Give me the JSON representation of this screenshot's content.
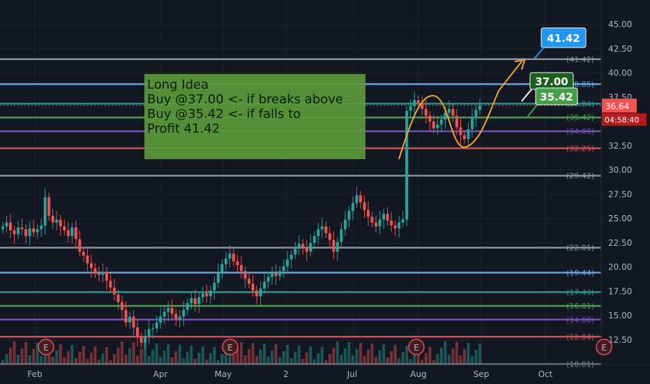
{
  "chart_data": {
    "type": "candlestick",
    "price_axis": {
      "ticks": [
        "45.00",
        "42.50",
        "40.00",
        "37.50",
        "35.00",
        "32.50",
        "30.00",
        "27.50",
        "25.00",
        "22.50",
        "20.00",
        "17.50",
        "15.00",
        "12.50"
      ],
      "ylim": [
        10.0,
        46.5
      ]
    },
    "time_axis": {
      "ticks": [
        "Feb",
        "Apr",
        "May",
        "2",
        "Jul",
        "Aug",
        "Sep",
        "Oct"
      ]
    },
    "current_price": {
      "value": "36.64",
      "countdown": "04:58:40",
      "price": 36.64
    },
    "horizontal_levels": [
      {
        "label": "(41.42)",
        "price": 41.42,
        "color": "#9aa0a6"
      },
      {
        "label": "(38.85)",
        "price": 38.85,
        "color": "#64b5f6"
      },
      {
        "label": "(36.84)",
        "price": 36.84,
        "color": "#26a69a"
      },
      {
        "label": "(35.42)",
        "price": 35.42,
        "color": "#4caf50"
      },
      {
        "label": "(34.00)",
        "price": 34.0,
        "color": "#7e57c2"
      },
      {
        "label": "(32.25)",
        "price": 32.25,
        "color": "#ef5350"
      },
      {
        "label": "(29.42)",
        "price": 29.42,
        "color": "#9aa0a6"
      },
      {
        "label": "(22.01)",
        "price": 22.01,
        "color": "#9aa0a6"
      },
      {
        "label": "(19.44)",
        "price": 19.44,
        "color": "#64b5f6"
      },
      {
        "label": "(17.43)",
        "price": 17.43,
        "color": "#26a69a"
      },
      {
        "label": "(16.01)",
        "price": 16.01,
        "color": "#4caf50"
      },
      {
        "label": "(14.60)",
        "price": 14.6,
        "color": "#7e57c2"
      },
      {
        "label": "(12.84)",
        "price": 12.84,
        "color": "#ef5350"
      },
      {
        "label": "(10.01)",
        "price": 10.01,
        "color": "#9aa0a6"
      }
    ],
    "price_tags": [
      {
        "text": "41.42",
        "price": 41.42,
        "color": "#2196f3"
      },
      {
        "text": "37.00",
        "price": 37.0,
        "color": "#1b5e20"
      },
      {
        "text": "35.42",
        "price": 35.42,
        "color": "#43a047"
      }
    ],
    "earnings_markers": [
      "E",
      "E",
      "E",
      "E"
    ],
    "series_close": [
      24.2,
      24.6,
      23.8,
      23.4,
      24.1,
      23.9,
      23.2,
      24.0,
      23.6,
      23.9,
      24.3,
      27.2,
      25.3,
      24.6,
      24.9,
      24.2,
      23.8,
      23.2,
      24.1,
      22.9,
      21.6,
      21.2,
      20.4,
      19.9,
      19.4,
      19.2,
      19.5,
      18.6,
      17.9,
      17.2,
      16.4,
      15.6,
      14.3,
      14.9,
      13.8,
      12.8,
      12.2,
      12.9,
      13.6,
      13.7,
      14.3,
      14.9,
      15.4,
      15.8,
      15.2,
      14.6,
      14.9,
      15.6,
      16.3,
      16.8,
      16.2,
      16.9,
      17.3,
      17.0,
      17.6,
      18.4,
      19.5,
      20.3,
      20.9,
      21.4,
      20.6,
      20.2,
      19.6,
      18.8,
      18.3,
      17.6,
      17.0,
      17.8,
      18.5,
      19.0,
      19.4,
      19.1,
      19.6,
      20.1,
      20.8,
      21.3,
      21.9,
      22.4,
      22.1,
      21.6,
      22.5,
      23.2,
      23.9,
      24.2,
      23.5,
      22.8,
      21.6,
      22.6,
      23.9,
      24.9,
      25.8,
      26.6,
      27.4,
      26.7,
      25.9,
      25.2,
      24.6,
      24.2,
      24.9,
      25.5,
      24.8,
      24.3,
      24.0,
      24.6,
      24.9,
      36.1,
      36.6,
      37.2,
      36.9,
      36.3,
      35.6,
      35.0,
      34.3,
      34.7,
      35.2,
      35.9,
      36.3,
      35.6,
      34.4,
      33.6,
      33.2,
      34.2,
      35.4,
      36.2,
      36.64
    ],
    "annotation": {
      "lines": [
        "Long Idea",
        "Buy @37.00 <- if breaks above",
        "Buy @35.42 <- if falls to",
        "",
        "Profit 41.42"
      ]
    }
  }
}
